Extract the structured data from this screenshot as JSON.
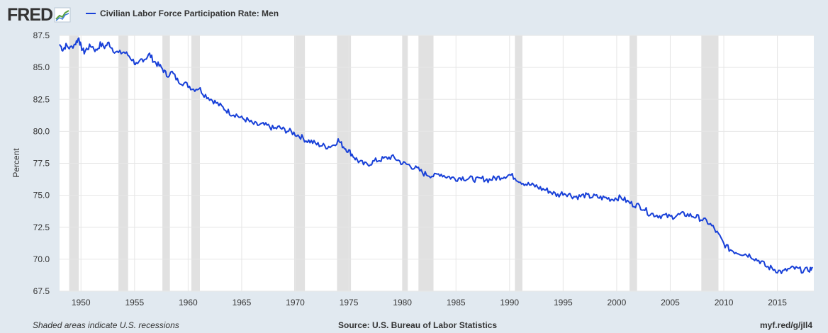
{
  "header": {
    "logo_text": "FRED",
    "logo_icon": "line-chart-icon"
  },
  "colors": {
    "background": "#e1e9f0",
    "plot_background": "#ffffff",
    "series": "#1840d8",
    "recession": "#e1e1e1",
    "grid": "#e6e6e6",
    "text": "#333333"
  },
  "footer": {
    "recession_note": "Shaded areas indicate U.S. recessions",
    "source": "Source: U.S. Bureau of Labor Statistics",
    "short_url": "myf.red/g/jIl4"
  },
  "chart_data": {
    "type": "line",
    "title": "",
    "legend": "Civilian Labor Force Participation Rate: Men",
    "legend_position": "top-left",
    "xlabel": "",
    "ylabel": "Percent",
    "x_unit": "year",
    "xlim": [
      1948.0,
      2018.4
    ],
    "ylim": [
      67.5,
      87.5
    ],
    "yticks": [
      "67.5",
      "70.0",
      "72.5",
      "75.0",
      "77.5",
      "80.0",
      "82.5",
      "85.0",
      "87.5"
    ],
    "xticks": [
      "1950",
      "1955",
      "1960",
      "1965",
      "1970",
      "1975",
      "1980",
      "1985",
      "1990",
      "1995",
      "2000",
      "2005",
      "2010",
      "2015"
    ],
    "grid": true,
    "recession_shading": [
      [
        1948.9,
        1949.8
      ],
      [
        1953.5,
        1954.4
      ],
      [
        1957.6,
        1958.3
      ],
      [
        1960.3,
        1961.1
      ],
      [
        1969.9,
        1970.9
      ],
      [
        1973.9,
        1975.2
      ],
      [
        1980.0,
        1980.5
      ],
      [
        1981.5,
        1982.9
      ],
      [
        1990.5,
        1991.2
      ],
      [
        2001.2,
        2001.9
      ],
      [
        2007.9,
        2009.5
      ]
    ],
    "series": [
      {
        "name": "Civilian Labor Force Participation Rate: Men",
        "points": [
          [
            1948.0,
            86.8
          ],
          [
            1948.3,
            86.4
          ],
          [
            1948.6,
            86.7
          ],
          [
            1949.0,
            86.5
          ],
          [
            1949.5,
            86.9
          ],
          [
            1949.8,
            87.3
          ],
          [
            1950.0,
            86.6
          ],
          [
            1950.3,
            86.2
          ],
          [
            1950.6,
            86.5
          ],
          [
            1951.0,
            86.7
          ],
          [
            1951.4,
            86.3
          ],
          [
            1951.8,
            86.8
          ],
          [
            1952.2,
            86.6
          ],
          [
            1952.6,
            86.9
          ],
          [
            1953.0,
            86.4
          ],
          [
            1953.5,
            86.1
          ],
          [
            1954.0,
            86.2
          ],
          [
            1954.5,
            85.9
          ],
          [
            1955.0,
            85.4
          ],
          [
            1955.3,
            85.1
          ],
          [
            1955.6,
            85.6
          ],
          [
            1956.0,
            85.7
          ],
          [
            1956.4,
            86.0
          ],
          [
            1956.8,
            85.5
          ],
          [
            1957.2,
            85.2
          ],
          [
            1957.6,
            84.9
          ],
          [
            1958.0,
            84.4
          ],
          [
            1958.5,
            84.6
          ],
          [
            1959.0,
            84.0
          ],
          [
            1959.5,
            83.8
          ],
          [
            1960.0,
            83.6
          ],
          [
            1960.5,
            83.3
          ],
          [
            1961.0,
            83.4
          ],
          [
            1961.5,
            82.9
          ],
          [
            1962.0,
            82.6
          ],
          [
            1962.5,
            82.3
          ],
          [
            1963.0,
            82.0
          ],
          [
            1963.5,
            81.7
          ],
          [
            1964.0,
            81.4
          ],
          [
            1964.5,
            81.3
          ],
          [
            1965.0,
            81.0
          ],
          [
            1965.5,
            80.9
          ],
          [
            1966.0,
            80.6
          ],
          [
            1966.5,
            80.5
          ],
          [
            1967.0,
            80.5
          ],
          [
            1967.5,
            80.4
          ],
          [
            1968.0,
            80.2
          ],
          [
            1968.5,
            80.3
          ],
          [
            1969.0,
            80.1
          ],
          [
            1969.5,
            80.0
          ],
          [
            1970.0,
            79.8
          ],
          [
            1970.5,
            79.6
          ],
          [
            1971.0,
            79.3
          ],
          [
            1971.5,
            79.2
          ],
          [
            1972.0,
            79.0
          ],
          [
            1972.5,
            78.9
          ],
          [
            1973.0,
            78.8
          ],
          [
            1973.5,
            78.9
          ],
          [
            1974.0,
            79.3
          ],
          [
            1974.4,
            78.9
          ],
          [
            1974.8,
            78.6
          ],
          [
            1975.2,
            78.3
          ],
          [
            1975.6,
            77.9
          ],
          [
            1976.0,
            77.6
          ],
          [
            1976.5,
            77.4
          ],
          [
            1977.0,
            77.5
          ],
          [
            1977.5,
            77.7
          ],
          [
            1978.0,
            77.8
          ],
          [
            1978.5,
            77.9
          ],
          [
            1979.0,
            78.0
          ],
          [
            1979.5,
            77.8
          ],
          [
            1980.0,
            77.5
          ],
          [
            1980.5,
            77.4
          ],
          [
            1981.0,
            77.2
          ],
          [
            1981.5,
            77.0
          ],
          [
            1982.0,
            76.7
          ],
          [
            1982.5,
            76.6
          ],
          [
            1983.0,
            76.5
          ],
          [
            1983.5,
            76.7
          ],
          [
            1984.0,
            76.5
          ],
          [
            1984.5,
            76.4
          ],
          [
            1985.0,
            76.3
          ],
          [
            1985.5,
            76.4
          ],
          [
            1986.0,
            76.3
          ],
          [
            1986.5,
            76.3
          ],
          [
            1987.0,
            76.2
          ],
          [
            1987.5,
            76.3
          ],
          [
            1988.0,
            76.2
          ],
          [
            1988.5,
            76.3
          ],
          [
            1989.0,
            76.4
          ],
          [
            1989.5,
            76.5
          ],
          [
            1990.0,
            76.6
          ],
          [
            1990.5,
            76.4
          ],
          [
            1991.0,
            76.1
          ],
          [
            1991.5,
            75.9
          ],
          [
            1992.0,
            75.8
          ],
          [
            1992.5,
            75.7
          ],
          [
            1993.0,
            75.5
          ],
          [
            1993.5,
            75.4
          ],
          [
            1994.0,
            75.2
          ],
          [
            1994.5,
            75.0
          ],
          [
            1995.0,
            75.2
          ],
          [
            1995.5,
            75.1
          ],
          [
            1996.0,
            74.9
          ],
          [
            1996.5,
            74.9
          ],
          [
            1997.0,
            75.0
          ],
          [
            1997.5,
            74.9
          ],
          [
            1998.0,
            74.9
          ],
          [
            1998.5,
            74.8
          ],
          [
            1999.0,
            74.8
          ],
          [
            1999.5,
            74.7
          ],
          [
            2000.0,
            74.8
          ],
          [
            2000.5,
            74.8
          ],
          [
            2001.0,
            74.5
          ],
          [
            2001.5,
            74.3
          ],
          [
            2002.0,
            74.2
          ],
          [
            2002.5,
            74.0
          ],
          [
            2003.0,
            73.6
          ],
          [
            2003.5,
            73.5
          ],
          [
            2004.0,
            73.4
          ],
          [
            2004.5,
            73.4
          ],
          [
            2005.0,
            73.3
          ],
          [
            2005.5,
            73.4
          ],
          [
            2006.0,
            73.5
          ],
          [
            2006.5,
            73.5
          ],
          [
            2007.0,
            73.4
          ],
          [
            2007.5,
            73.3
          ],
          [
            2008.0,
            73.1
          ],
          [
            2008.5,
            72.9
          ],
          [
            2009.0,
            72.5
          ],
          [
            2009.5,
            71.9
          ],
          [
            2010.0,
            71.2
          ],
          [
            2010.5,
            70.8
          ],
          [
            2011.0,
            70.6
          ],
          [
            2011.5,
            70.5
          ],
          [
            2012.0,
            70.4
          ],
          [
            2012.5,
            70.3
          ],
          [
            2013.0,
            70.0
          ],
          [
            2013.5,
            69.8
          ],
          [
            2014.0,
            69.4
          ],
          [
            2014.5,
            69.3
          ],
          [
            2015.0,
            69.1
          ],
          [
            2015.5,
            69.0
          ],
          [
            2016.0,
            69.2
          ],
          [
            2016.5,
            69.3
          ],
          [
            2017.0,
            69.2
          ],
          [
            2017.5,
            69.1
          ],
          [
            2018.0,
            69.2
          ],
          [
            2018.3,
            69.3
          ]
        ]
      }
    ]
  }
}
